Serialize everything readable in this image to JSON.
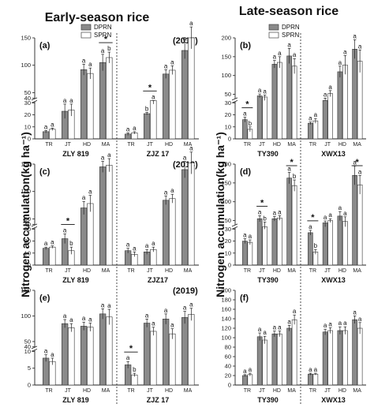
{
  "titles": {
    "left": "Early-season rice",
    "right": "Late-season rice",
    "ylabel": "Nitrogen accumulation(kg ha⁻¹)"
  },
  "legend": [
    {
      "name": "DPRN",
      "color": "#8a8a8a"
    },
    {
      "name": "SPRN",
      "color": "#ffffff"
    }
  ],
  "colors": {
    "dprn": "#8a8a8a",
    "sprn": "#ffffff"
  },
  "chart_data": [
    {
      "panel": "(a)",
      "year": "(2017)",
      "season": "Early-season rice",
      "type": "bar",
      "break": {
        "low": [
          0,
          30
        ],
        "high": [
          40,
          150
        ]
      },
      "yticks_low": [
        0,
        10,
        20,
        30
      ],
      "yticks_high": [
        40,
        50,
        100,
        150
      ],
      "groups": [
        {
          "name": "ZLY 819",
          "stages": [
            "TR",
            "JT",
            "HD",
            "MA"
          ],
          "dprn": [
            6,
            23,
            92,
            105
          ],
          "sprn": [
            8,
            24,
            85,
            114
          ],
          "dprn_err": [
            1,
            6,
            10,
            15
          ],
          "sprn_err": [
            1,
            5,
            10,
            10
          ],
          "dprn_sig": [
            "a",
            "a",
            "a",
            "a"
          ],
          "sprn_sig": [
            "a",
            "a",
            "a",
            "b"
          ],
          "star": [
            3
          ]
        },
        {
          "name": "ZJZ 17",
          "stages": [
            "TR",
            "JT",
            "HD",
            "MA"
          ],
          "dprn": [
            4,
            21,
            84,
            127
          ],
          "sprn": [
            5,
            32,
            91,
            150
          ],
          "dprn_err": [
            1,
            1,
            8,
            15
          ],
          "sprn_err": [
            1,
            3,
            8,
            20
          ],
          "dprn_sig": [
            "a",
            "b",
            "a",
            "a"
          ],
          "sprn_sig": [
            "a",
            "a",
            "a",
            "a"
          ],
          "star": [
            1
          ]
        }
      ]
    },
    {
      "panel": "(b)",
      "season": "Late-season rice",
      "type": "bar",
      "break": {
        "low": [
          0,
          30
        ],
        "high": [
          40,
          200
        ]
      },
      "yticks_low": [
        0,
        10,
        20,
        30
      ],
      "yticks_high": [
        50,
        100,
        150,
        200
      ],
      "groups": [
        {
          "name": "TY390",
          "stages": [
            "TR",
            "JT",
            "HD",
            "MA"
          ],
          "dprn": [
            16,
            46,
            130,
            152
          ],
          "sprn": [
            8,
            43,
            135,
            125
          ],
          "dprn_err": [
            2,
            5,
            10,
            20
          ],
          "sprn_err": [
            2,
            5,
            15,
            20
          ],
          "dprn_sig": [
            "a",
            "a",
            "a",
            "a"
          ],
          "sprn_sig": [
            "b",
            "a",
            "a",
            "a"
          ],
          "star": [
            0
          ]
        },
        {
          "name": "XWX13",
          "stages": [
            "TR",
            "JT",
            "HD",
            "MA"
          ],
          "dprn": [
            13,
            38,
            110,
            170
          ],
          "sprn": [
            15,
            52,
            128,
            138
          ],
          "dprn_err": [
            1,
            2,
            15,
            25
          ],
          "sprn_err": [
            2,
            8,
            25,
            30
          ],
          "dprn_sig": [
            "a",
            "a",
            "a",
            "a"
          ],
          "sprn_sig": [
            "a",
            "a",
            "a",
            "a"
          ],
          "star": []
        }
      ]
    },
    {
      "panel": "(c)",
      "year": "(2018)",
      "season": "Early-season rice",
      "type": "bar",
      "break": {
        "low": [
          0,
          30
        ],
        "high": [
          40,
          150
        ]
      },
      "yticks_low": [
        0,
        10,
        20,
        30
      ],
      "yticks_high": [
        40,
        50,
        100,
        150
      ],
      "groups": [
        {
          "name": "ZLY 819",
          "stages": [
            "TR",
            "JT",
            "HD",
            "MA"
          ],
          "dprn": [
            14,
            22,
            70,
            145
          ],
          "sprn": [
            15,
            12,
            78,
            148
          ],
          "dprn_err": [
            1,
            4,
            12,
            10
          ],
          "sprn_err": [
            1,
            3,
            15,
            12
          ],
          "dprn_sig": [
            "a",
            "a",
            "a",
            "a"
          ],
          "sprn_sig": [
            "a",
            "b",
            "a",
            "a"
          ],
          "star": [
            1
          ]
        },
        {
          "name": "ZJZ17",
          "stages": [
            "TR",
            "JT",
            "HD",
            "MA"
          ],
          "dprn": [
            12,
            11,
            84,
            140
          ],
          "sprn": [
            9,
            13,
            87,
            152
          ],
          "dprn_err": [
            2,
            2,
            8,
            15
          ],
          "sprn_err": [
            2,
            2,
            8,
            20
          ],
          "dprn_sig": [
            "a",
            "a",
            "a",
            "a"
          ],
          "sprn_sig": [
            "a",
            "a",
            "a",
            "a"
          ],
          "star": []
        }
      ]
    },
    {
      "panel": "(d)",
      "season": "Late-season rice",
      "type": "bar",
      "break": {
        "low": [
          0,
          30
        ],
        "high": [
          40,
          200
        ]
      },
      "yticks_low": [
        0,
        10,
        20,
        30
      ],
      "yticks_high": [
        50,
        100,
        150,
        200
      ],
      "groups": [
        {
          "name": "TY390",
          "stages": [
            "TR",
            "JT",
            "HD",
            "MA"
          ],
          "dprn": [
            20,
            55,
            55,
            163
          ],
          "sprn": [
            19,
            38,
            57,
            143
          ],
          "dprn_err": [
            2,
            8,
            6,
            15
          ],
          "sprn_err": [
            2,
            8,
            6,
            15
          ],
          "dprn_sig": [
            "a",
            "a",
            "a",
            "a"
          ],
          "sprn_sig": [
            "a",
            "b",
            "a",
            "b"
          ],
          "star": [
            1,
            3
          ]
        },
        {
          "name": "XWX13",
          "stages": [
            "TR",
            "JT",
            "HD",
            "MA"
          ],
          "dprn": [
            27,
            44,
            62,
            170
          ],
          "sprn": [
            11,
            50,
            48,
            145
          ],
          "dprn_err": [
            2,
            5,
            12,
            25
          ],
          "sprn_err": [
            2,
            5,
            12,
            25
          ],
          "dprn_sig": [
            "a",
            "a",
            "a",
            "a"
          ],
          "sprn_sig": [
            "b",
            "a",
            "a",
            "a"
          ],
          "star": [
            0,
            3
          ]
        }
      ]
    },
    {
      "panel": "(e)",
      "year": "(2019)",
      "season": "Early-season rice",
      "type": "bar",
      "break": {
        "low": [
          0,
          10
        ],
        "high": [
          40,
          150
        ]
      },
      "yticks_low": [
        0,
        5,
        10
      ],
      "yticks_high": [
        40,
        50,
        100,
        150
      ],
      "groups": [
        {
          "name": "ZLY 819",
          "stages": [
            "TR",
            "JT",
            "HD",
            "MA"
          ],
          "dprn": [
            8,
            85,
            80,
            104
          ],
          "sprn": [
            7,
            77,
            78,
            98
          ],
          "dprn_err": [
            1,
            8,
            8,
            10
          ],
          "sprn_err": [
            1,
            8,
            8,
            15
          ],
          "dprn_sig": [
            "a",
            "a",
            "a",
            "a"
          ],
          "sprn_sig": [
            "a",
            "a",
            "a",
            "a"
          ],
          "star": []
        },
        {
          "name": "ZJZ 17",
          "stages": [
            "TR",
            "JT",
            "HD",
            "MA"
          ],
          "dprn": [
            6,
            86,
            94,
            97
          ],
          "sprn": [
            3,
            70,
            65,
            103
          ],
          "dprn_err": [
            1,
            8,
            10,
            12
          ],
          "sprn_err": [
            0.5,
            8,
            10,
            12
          ],
          "dprn_sig": [
            "a",
            "a",
            "a",
            "a"
          ],
          "sprn_sig": [
            "b",
            "a",
            "a",
            "a"
          ],
          "star": [
            0
          ]
        }
      ]
    },
    {
      "panel": "(f)",
      "season": "Late-season rice",
      "type": "bar",
      "break": null,
      "ylim": [
        0,
        200
      ],
      "yticks": [
        0,
        20,
        40,
        60,
        80,
        100,
        120,
        140,
        160,
        180,
        200
      ],
      "groups": [
        {
          "name": "TY390",
          "stages": [
            "TR",
            "JT",
            "HD",
            "MA"
          ],
          "dprn": [
            20,
            102,
            108,
            120
          ],
          "sprn": [
            22,
            95,
            108,
            138
          ],
          "dprn_err": [
            2,
            8,
            6,
            6
          ],
          "sprn_err": [
            3,
            8,
            6,
            10
          ],
          "dprn_sig": [
            "a",
            "a",
            "a",
            "a"
          ],
          "sprn_sig": [
            "a",
            "a",
            "a",
            "a"
          ],
          "star": []
        },
        {
          "name": "XWX13",
          "stages": [
            "TR",
            "JT",
            "HD",
            "MA"
          ],
          "dprn": [
            23,
            112,
            115,
            138
          ],
          "sprn": [
            23,
            115,
            115,
            120
          ],
          "dprn_err": [
            2,
            6,
            8,
            8
          ],
          "sprn_err": [
            2,
            6,
            8,
            12
          ],
          "dprn_sig": [
            "a",
            "a",
            "a",
            "a"
          ],
          "sprn_sig": [
            "a",
            "a",
            "a",
            "a"
          ],
          "star": []
        }
      ]
    }
  ]
}
